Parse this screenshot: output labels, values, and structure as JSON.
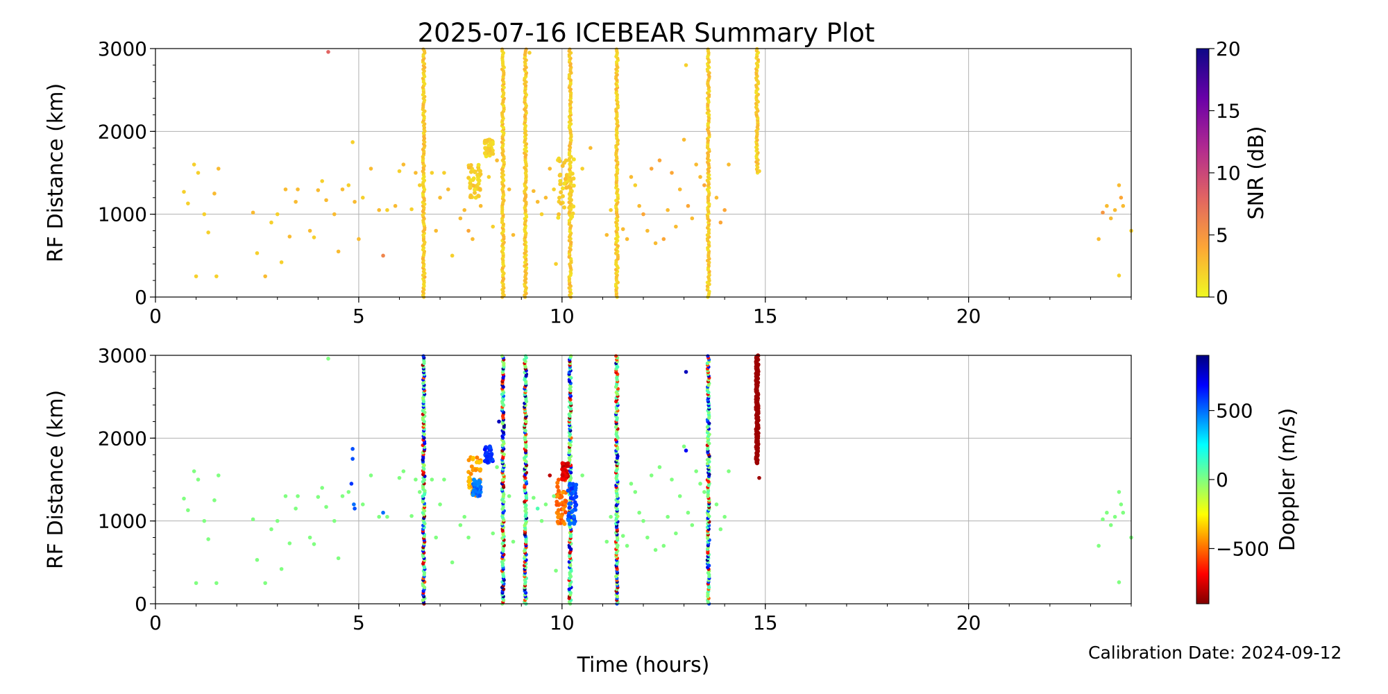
{
  "title": "2025-07-16 ICEBEAR Summary Plot",
  "calibration_text": "Calibration Date: 2024-09-12",
  "chart_data": [
    {
      "type": "scatter",
      "panel": "top",
      "xlabel": "",
      "ylabel": "RF Distance (km)",
      "xlim": [
        0,
        24
      ],
      "ylim": [
        0,
        3000
      ],
      "xticks": [
        0,
        5,
        10,
        15,
        20
      ],
      "yticks": [
        0,
        1000,
        2000,
        3000
      ],
      "grid": true,
      "color_by": "snr",
      "colorbar": {
        "label": "SNR (dB)",
        "range": [
          0,
          20
        ],
        "ticks": [
          0,
          5,
          10,
          15,
          20
        ],
        "colormap": "plasma_r"
      },
      "vertical_streaks": [
        {
          "x": 6.6,
          "y_from": 0,
          "y_to": 3000
        },
        {
          "x": 8.55,
          "y_from": 0,
          "y_to": 3000
        },
        {
          "x": 9.1,
          "y_from": 0,
          "y_to": 3000
        },
        {
          "x": 10.2,
          "y_from": 0,
          "y_to": 3000
        },
        {
          "x": 11.35,
          "y_from": 0,
          "y_to": 3000
        },
        {
          "x": 13.6,
          "y_from": 0,
          "y_to": 3000
        },
        {
          "x": 14.8,
          "y_from": 1500,
          "y_to": 3000
        }
      ],
      "clusters": [
        {
          "x": [
            7.7,
            8.0
          ],
          "y": [
            1200,
            1600
          ]
        },
        {
          "x": [
            8.1,
            8.3
          ],
          "y": [
            1700,
            1900
          ]
        },
        {
          "x": [
            9.9,
            10.3
          ],
          "y": [
            900,
            1700
          ]
        }
      ],
      "points": [
        [
          0.7,
          1270,
          2
        ],
        [
          0.8,
          1130,
          2
        ],
        [
          0.95,
          1600,
          2
        ],
        [
          1.05,
          1500,
          2
        ],
        [
          1.2,
          1000,
          2
        ],
        [
          1.3,
          780,
          2
        ],
        [
          1.45,
          1250,
          3
        ],
        [
          1.55,
          1550,
          3
        ],
        [
          1.0,
          250,
          2
        ],
        [
          1.5,
          250,
          2
        ],
        [
          2.4,
          1020,
          3
        ],
        [
          2.5,
          530,
          2
        ],
        [
          2.7,
          250,
          3
        ],
        [
          2.85,
          900,
          2
        ],
        [
          3.0,
          1000,
          2
        ],
        [
          3.1,
          420,
          2
        ],
        [
          3.2,
          1300,
          3
        ],
        [
          3.3,
          730,
          3
        ],
        [
          3.45,
          1150,
          3
        ],
        [
          3.5,
          1300,
          3
        ],
        [
          3.8,
          800,
          3
        ],
        [
          3.9,
          720,
          2
        ],
        [
          4.0,
          1290,
          3
        ],
        [
          4.1,
          1400,
          2
        ],
        [
          4.2,
          1170,
          3
        ],
        [
          4.25,
          2960,
          8
        ],
        [
          4.4,
          1000,
          3
        ],
        [
          4.5,
          550,
          3
        ],
        [
          4.6,
          1300,
          3
        ],
        [
          4.75,
          1350,
          2
        ],
        [
          4.85,
          1870,
          2
        ],
        [
          4.9,
          1150,
          3
        ],
        [
          5.0,
          700,
          3
        ],
        [
          5.1,
          1200,
          2
        ],
        [
          5.3,
          1550,
          3
        ],
        [
          5.5,
          1050,
          3
        ],
        [
          5.6,
          500,
          6
        ],
        [
          5.7,
          1050,
          2
        ],
        [
          5.9,
          1100,
          3
        ],
        [
          6.0,
          1520,
          2
        ],
        [
          6.1,
          1600,
          3
        ],
        [
          6.3,
          1060,
          2
        ],
        [
          6.4,
          1500,
          3
        ],
        [
          6.5,
          1350,
          2
        ],
        [
          6.8,
          1500,
          2
        ],
        [
          6.9,
          800,
          3
        ],
        [
          7.0,
          1200,
          3
        ],
        [
          7.1,
          1500,
          2
        ],
        [
          7.2,
          1300,
          3
        ],
        [
          7.3,
          500,
          2
        ],
        [
          7.5,
          950,
          3
        ],
        [
          7.6,
          1050,
          3
        ],
        [
          7.7,
          800,
          4
        ],
        [
          7.8,
          700,
          3
        ],
        [
          8.0,
          1100,
          3
        ],
        [
          8.2,
          1450,
          2
        ],
        [
          8.3,
          850,
          2
        ],
        [
          8.4,
          1650,
          3
        ],
        [
          8.7,
          1300,
          3
        ],
        [
          8.8,
          750,
          3
        ],
        [
          9.2,
          2950,
          2
        ],
        [
          9.3,
          1280,
          3
        ],
        [
          9.4,
          1150,
          3
        ],
        [
          9.5,
          1000,
          2
        ],
        [
          9.6,
          1200,
          3
        ],
        [
          9.7,
          1550,
          3
        ],
        [
          9.8,
          1300,
          2
        ],
        [
          9.85,
          400,
          2
        ],
        [
          10.5,
          1550,
          2
        ],
        [
          10.7,
          1800,
          3
        ],
        [
          11.1,
          750,
          3
        ],
        [
          11.2,
          1050,
          2
        ],
        [
          11.5,
          820,
          3
        ],
        [
          11.6,
          700,
          3
        ],
        [
          11.7,
          1450,
          3
        ],
        [
          11.8,
          1350,
          2
        ],
        [
          11.9,
          1100,
          3
        ],
        [
          12.0,
          1000,
          4
        ],
        [
          12.1,
          800,
          3
        ],
        [
          12.2,
          1550,
          4
        ],
        [
          12.3,
          650,
          3
        ],
        [
          12.4,
          1650,
          4
        ],
        [
          12.5,
          700,
          4
        ],
        [
          12.6,
          1050,
          3
        ],
        [
          12.7,
          1500,
          4
        ],
        [
          12.8,
          850,
          3
        ],
        [
          12.9,
          1300,
          3
        ],
        [
          13.0,
          1900,
          3
        ],
        [
          13.05,
          2800,
          2
        ],
        [
          13.1,
          1100,
          4
        ],
        [
          13.2,
          950,
          3
        ],
        [
          13.3,
          1600,
          3
        ],
        [
          13.4,
          1450,
          3
        ],
        [
          13.5,
          1350,
          4
        ],
        [
          13.8,
          1200,
          3
        ],
        [
          13.9,
          900,
          4
        ],
        [
          14.0,
          1050,
          4
        ],
        [
          14.1,
          1600,
          3
        ],
        [
          14.85,
          1520,
          2
        ],
        [
          23.2,
          700,
          3
        ],
        [
          23.3,
          1020,
          5
        ],
        [
          23.4,
          1100,
          3
        ],
        [
          23.5,
          950,
          3
        ],
        [
          23.6,
          1050,
          3
        ],
        [
          23.7,
          1350,
          3
        ],
        [
          23.75,
          1200,
          4
        ],
        [
          23.8,
          1100,
          3
        ],
        [
          23.7,
          260,
          2
        ],
        [
          24.0,
          800,
          2
        ]
      ]
    },
    {
      "type": "scatter",
      "panel": "bottom",
      "xlabel": "Time (hours)",
      "ylabel": "RF Distance (km)",
      "xlim": [
        0,
        24
      ],
      "ylim": [
        0,
        3000
      ],
      "xticks": [
        0,
        5,
        10,
        15,
        20
      ],
      "yticks": [
        0,
        1000,
        2000,
        3000
      ],
      "grid": true,
      "color_by": "doppler",
      "colorbar": {
        "label": "Doppler (m/s)",
        "range": [
          -900,
          900
        ],
        "ticks": [
          -500,
          0,
          500
        ],
        "colormap": "jet_r"
      },
      "vertical_streaks": [
        {
          "x": 6.6,
          "y_from": 0,
          "y_to": 3000
        },
        {
          "x": 8.55,
          "y_from": 0,
          "y_to": 3000
        },
        {
          "x": 9.1,
          "y_from": 0,
          "y_to": 3000
        },
        {
          "x": 10.2,
          "y_from": 0,
          "y_to": 3000
        },
        {
          "x": 11.35,
          "y_from": 0,
          "y_to": 3000
        },
        {
          "x": 13.6,
          "y_from": 0,
          "y_to": 3000
        }
      ],
      "bands": [
        {
          "x": 14.8,
          "y_from": 1700,
          "y_to": 3000,
          "doppler": -850
        }
      ],
      "clusters": [
        {
          "x": [
            7.7,
            8.0
          ],
          "y": [
            1300,
            1800
          ],
          "doppler": -400
        },
        {
          "x": [
            7.8,
            8.0
          ],
          "y": [
            1300,
            1500
          ],
          "doppler": 500
        },
        {
          "x": [
            8.1,
            8.3
          ],
          "y": [
            1700,
            1900
          ],
          "doppler": 600
        },
        {
          "x": [
            9.85,
            10.1
          ],
          "y": [
            950,
            1500
          ],
          "doppler": -500
        },
        {
          "x": [
            10.15,
            10.35
          ],
          "y": [
            950,
            1450
          ],
          "doppler": 550
        },
        {
          "x": [
            10.0,
            10.15
          ],
          "y": [
            1500,
            1700
          ],
          "doppler": -750
        }
      ],
      "points": [
        [
          0.7,
          1270,
          0
        ],
        [
          0.8,
          1130,
          0
        ],
        [
          0.95,
          1600,
          0
        ],
        [
          1.05,
          1500,
          0
        ],
        [
          1.2,
          1000,
          0
        ],
        [
          1.3,
          780,
          0
        ],
        [
          1.45,
          1250,
          0
        ],
        [
          1.55,
          1550,
          0
        ],
        [
          1.0,
          250,
          0
        ],
        [
          1.5,
          250,
          0
        ],
        [
          2.4,
          1020,
          0
        ],
        [
          2.5,
          530,
          0
        ],
        [
          2.7,
          250,
          0
        ],
        [
          2.85,
          900,
          0
        ],
        [
          3.0,
          1000,
          0
        ],
        [
          3.1,
          420,
          0
        ],
        [
          3.2,
          1300,
          0
        ],
        [
          3.3,
          730,
          0
        ],
        [
          3.45,
          1150,
          0
        ],
        [
          3.5,
          1300,
          0
        ],
        [
          3.8,
          800,
          0
        ],
        [
          3.9,
          720,
          0
        ],
        [
          4.0,
          1290,
          0
        ],
        [
          4.1,
          1400,
          0
        ],
        [
          4.2,
          1170,
          0
        ],
        [
          4.25,
          2960,
          0
        ],
        [
          4.4,
          1000,
          0
        ],
        [
          4.5,
          550,
          0
        ],
        [
          4.6,
          1300,
          0
        ],
        [
          4.75,
          1350,
          0
        ],
        [
          4.85,
          1870,
          550
        ],
        [
          4.85,
          1750,
          550
        ],
        [
          4.82,
          1450,
          600
        ],
        [
          4.88,
          1200,
          500
        ],
        [
          4.9,
          1150,
          550
        ],
        [
          5.6,
          1100,
          500
        ],
        [
          5.1,
          1200,
          0
        ],
        [
          5.3,
          1550,
          0
        ],
        [
          5.5,
          1050,
          0
        ],
        [
          5.7,
          1050,
          0
        ],
        [
          6.0,
          1520,
          0
        ],
        [
          6.1,
          1600,
          0
        ],
        [
          6.3,
          1060,
          0
        ],
        [
          6.4,
          1500,
          0
        ],
        [
          6.5,
          1350,
          0
        ],
        [
          6.8,
          1500,
          0
        ],
        [
          6.9,
          800,
          0
        ],
        [
          7.0,
          1200,
          0
        ],
        [
          7.1,
          1500,
          0
        ],
        [
          7.3,
          500,
          0
        ],
        [
          7.5,
          950,
          0
        ],
        [
          7.6,
          1050,
          0
        ],
        [
          7.7,
          800,
          0
        ],
        [
          8.3,
          850,
          0
        ],
        [
          8.4,
          1650,
          0
        ],
        [
          8.45,
          2200,
          800
        ],
        [
          8.7,
          1300,
          0
        ],
        [
          8.8,
          750,
          0
        ],
        [
          9.3,
          1280,
          0
        ],
        [
          9.4,
          1150,
          100
        ],
        [
          9.5,
          1000,
          0
        ],
        [
          9.6,
          1200,
          0
        ],
        [
          9.7,
          1550,
          -800
        ],
        [
          9.8,
          1300,
          0
        ],
        [
          9.85,
          400,
          0
        ],
        [
          10.5,
          1550,
          0
        ],
        [
          11.1,
          750,
          0
        ],
        [
          11.2,
          1050,
          0
        ],
        [
          11.5,
          820,
          0
        ],
        [
          11.6,
          700,
          0
        ],
        [
          11.7,
          1450,
          0
        ],
        [
          11.8,
          1350,
          0
        ],
        [
          11.9,
          1100,
          0
        ],
        [
          12.0,
          1000,
          0
        ],
        [
          12.1,
          800,
          0
        ],
        [
          12.2,
          1550,
          0
        ],
        [
          12.3,
          650,
          0
        ],
        [
          12.4,
          1650,
          0
        ],
        [
          12.5,
          700,
          0
        ],
        [
          12.6,
          1050,
          0
        ],
        [
          12.7,
          1500,
          0
        ],
        [
          12.8,
          850,
          0
        ],
        [
          12.9,
          1300,
          0
        ],
        [
          13.0,
          1900,
          0
        ],
        [
          13.05,
          2800,
          800
        ],
        [
          13.05,
          1850,
          700
        ],
        [
          13.1,
          1100,
          0
        ],
        [
          13.2,
          950,
          0
        ],
        [
          13.3,
          1600,
          0
        ],
        [
          13.4,
          1450,
          0
        ],
        [
          13.5,
          1350,
          0
        ],
        [
          13.8,
          1200,
          0
        ],
        [
          13.9,
          900,
          0
        ],
        [
          14.0,
          1050,
          0
        ],
        [
          14.1,
          1600,
          0
        ],
        [
          14.85,
          1520,
          -850
        ],
        [
          23.2,
          700,
          0
        ],
        [
          23.3,
          1020,
          0
        ],
        [
          23.4,
          1100,
          0
        ],
        [
          23.5,
          950,
          0
        ],
        [
          23.6,
          1050,
          0
        ],
        [
          23.7,
          1350,
          0
        ],
        [
          23.75,
          1200,
          0
        ],
        [
          23.8,
          1100,
          0
        ],
        [
          23.7,
          260,
          0
        ],
        [
          24.0,
          800,
          0
        ]
      ]
    }
  ]
}
